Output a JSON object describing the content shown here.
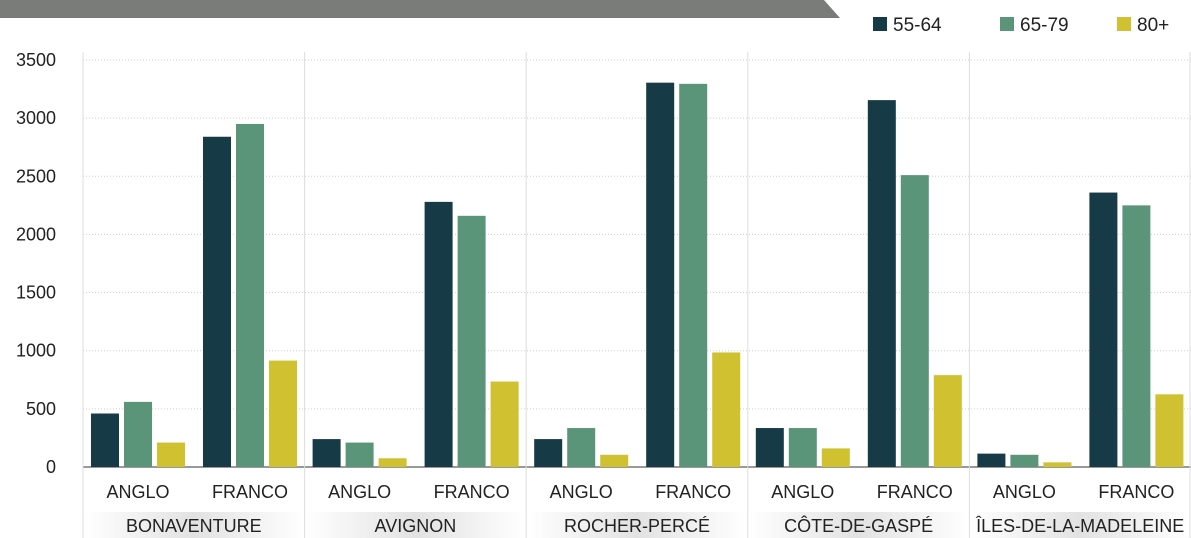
{
  "chart_data": {
    "type": "bar",
    "groups": [
      "BONAVENTURE",
      "AVIGNON",
      "ROCHER-PERCÉ",
      "CÔTE-DE-GASPÉ",
      "ÎLES-DE-LA-MADELEINE"
    ],
    "subcategories": [
      "ANGLO",
      "FRANCO"
    ],
    "series": [
      {
        "name": "55-64",
        "color": "#173a47",
        "values": [
          [
            460,
            2840
          ],
          [
            240,
            2280
          ],
          [
            240,
            3305
          ],
          [
            335,
            3155
          ],
          [
            115,
            2360
          ]
        ]
      },
      {
        "name": "65-79",
        "color": "#5a957a",
        "values": [
          [
            560,
            2950
          ],
          [
            210,
            2160
          ],
          [
            335,
            3295
          ],
          [
            335,
            2510
          ],
          [
            105,
            2250
          ]
        ]
      },
      {
        "name": "80+",
        "color": "#cfc130",
        "values": [
          [
            210,
            915
          ],
          [
            75,
            735
          ],
          [
            105,
            985
          ],
          [
            160,
            790
          ],
          [
            40,
            625
          ]
        ]
      }
    ],
    "ylim": [
      0,
      3500
    ],
    "yticks": [
      0,
      500,
      1000,
      1500,
      2000,
      2500,
      3000,
      3500
    ],
    "grid": true,
    "legend": "top-right"
  },
  "colors": {
    "banner": "#7a7c7a",
    "gridline": "#cfcfcf",
    "group_band": "#e2e2e2"
  }
}
